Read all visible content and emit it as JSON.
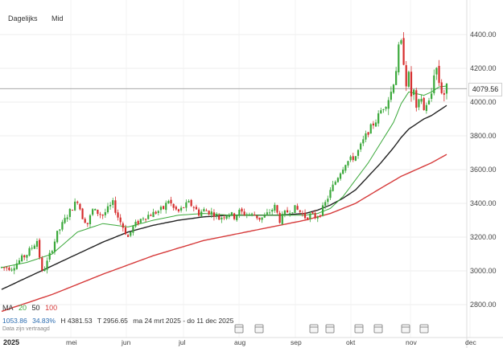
{
  "toolbar": {
    "period": "Dagelijks",
    "type": "Mid"
  },
  "price_badge": "4079.56",
  "legend": {
    "ma_label": "MA",
    "ma_values": [
      "20",
      "50",
      "100"
    ],
    "colors": {
      "ma20": "#3aa83a",
      "ma50": "#222222",
      "ma100": "#d63a3a",
      "up": "#3aa83a",
      "down": "#d62c2c"
    }
  },
  "stats": {
    "change": "1053.86",
    "pct": "34.83%",
    "high": "H 4381.53",
    "low": "T 2956.65",
    "range": "ma 24 mrt 2025 - do 11 dec 2025"
  },
  "note": "Data zijn vertraagd",
  "year_label": "2025",
  "chart_data": {
    "type": "candlestick",
    "y_ticks": [
      "4400.00",
      "4200.00",
      "4000.00",
      "3800.00",
      "3600.00",
      "3400.00",
      "3200.00",
      "3000.00",
      "2800.00"
    ],
    "ylim": [
      2680,
      4520
    ],
    "x_months": [
      "mei",
      "jun",
      "jul",
      "aug",
      "sep",
      "okt",
      "nov",
      "dec"
    ],
    "close_path": [
      [
        0,
        3020
      ],
      [
        4,
        3020
      ],
      [
        10,
        3100
      ],
      [
        14,
        3180
      ],
      [
        16,
        2990
      ],
      [
        18,
        3050
      ],
      [
        22,
        3220
      ],
      [
        26,
        3330
      ],
      [
        30,
        3420
      ],
      [
        32,
        3320
      ],
      [
        34,
        3280
      ],
      [
        36,
        3360
      ],
      [
        40,
        3330
      ],
      [
        44,
        3400
      ],
      [
        46,
        3320
      ],
      [
        48,
        3260
      ],
      [
        50,
        3200
      ],
      [
        52,
        3260
      ],
      [
        54,
        3290
      ],
      [
        56,
        3320
      ],
      [
        60,
        3340
      ],
      [
        64,
        3370
      ],
      [
        66,
        3420
      ],
      [
        68,
        3370
      ],
      [
        70,
        3350
      ],
      [
        72,
        3380
      ],
      [
        74,
        3400
      ],
      [
        76,
        3380
      ],
      [
        78,
        3340
      ],
      [
        80,
        3360
      ],
      [
        84,
        3340
      ],
      [
        86,
        3310
      ],
      [
        88,
        3330
      ],
      [
        90,
        3340
      ],
      [
        92,
        3320
      ],
      [
        94,
        3350
      ],
      [
        96,
        3340
      ],
      [
        100,
        3330
      ],
      [
        102,
        3310
      ],
      [
        104,
        3320
      ],
      [
        106,
        3350
      ],
      [
        108,
        3380
      ],
      [
        110,
        3300
      ],
      [
        112,
        3340
      ],
      [
        114,
        3360
      ],
      [
        116,
        3370
      ],
      [
        118,
        3350
      ],
      [
        120,
        3320
      ],
      [
        122,
        3330
      ],
      [
        124,
        3320
      ],
      [
        126,
        3340
      ],
      [
        128,
        3400
      ],
      [
        130,
        3470
      ],
      [
        132,
        3530
      ],
      [
        134,
        3590
      ],
      [
        136,
        3640
      ],
      [
        138,
        3660
      ],
      [
        140,
        3680
      ],
      [
        142,
        3740
      ],
      [
        144,
        3800
      ],
      [
        146,
        3850
      ],
      [
        148,
        3890
      ],
      [
        150,
        3950
      ],
      [
        152,
        3990
      ],
      [
        154,
        4060
      ],
      [
        156,
        4200
      ],
      [
        157,
        4310
      ],
      [
        158,
        4340
      ],
      [
        159,
        4250
      ],
      [
        160,
        4120
      ],
      [
        161,
        4150
      ],
      [
        162,
        4040
      ],
      [
        163,
        4060
      ],
      [
        164,
        3950
      ],
      [
        165,
        4000
      ],
      [
        166,
        4030
      ],
      [
        167,
        3950
      ],
      [
        168,
        3990
      ],
      [
        169,
        4000
      ],
      [
        170,
        4050
      ],
      [
        171,
        4180
      ],
      [
        172,
        4200
      ],
      [
        173,
        4120
      ],
      [
        174,
        4070
      ],
      [
        175,
        4050
      ],
      [
        176,
        4080
      ]
    ],
    "ma20_path": [
      [
        0,
        3020
      ],
      [
        10,
        3050
      ],
      [
        20,
        3100
      ],
      [
        30,
        3230
      ],
      [
        40,
        3280
      ],
      [
        50,
        3260
      ],
      [
        60,
        3300
      ],
      [
        70,
        3330
      ],
      [
        80,
        3340
      ],
      [
        90,
        3330
      ],
      [
        100,
        3330
      ],
      [
        110,
        3330
      ],
      [
        120,
        3330
      ],
      [
        125,
        3340
      ],
      [
        130,
        3370
      ],
      [
        135,
        3440
      ],
      [
        140,
        3540
      ],
      [
        145,
        3640
      ],
      [
        150,
        3760
      ],
      [
        155,
        3880
      ],
      [
        158,
        3990
      ],
      [
        161,
        4060
      ],
      [
        164,
        4050
      ],
      [
        167,
        4040
      ],
      [
        170,
        4060
      ],
      [
        173,
        4090
      ],
      [
        176,
        4095
      ]
    ],
    "ma50_path": [
      [
        0,
        2890
      ],
      [
        10,
        2960
      ],
      [
        20,
        3030
      ],
      [
        30,
        3100
      ],
      [
        40,
        3170
      ],
      [
        50,
        3230
      ],
      [
        60,
        3270
      ],
      [
        70,
        3300
      ],
      [
        80,
        3320
      ],
      [
        90,
        3330
      ],
      [
        100,
        3330
      ],
      [
        110,
        3330
      ],
      [
        120,
        3340
      ],
      [
        125,
        3360
      ],
      [
        130,
        3390
      ],
      [
        135,
        3430
      ],
      [
        140,
        3480
      ],
      [
        145,
        3560
      ],
      [
        150,
        3640
      ],
      [
        155,
        3730
      ],
      [
        158,
        3790
      ],
      [
        161,
        3840
      ],
      [
        164,
        3870
      ],
      [
        167,
        3900
      ],
      [
        170,
        3920
      ],
      [
        173,
        3950
      ],
      [
        176,
        3980
      ]
    ],
    "ma100_path": [
      [
        0,
        2760
      ],
      [
        20,
        2860
      ],
      [
        40,
        2980
      ],
      [
        60,
        3090
      ],
      [
        80,
        3180
      ],
      [
        100,
        3240
      ],
      [
        110,
        3270
      ],
      [
        120,
        3300
      ],
      [
        130,
        3340
      ],
      [
        140,
        3400
      ],
      [
        150,
        3490
      ],
      [
        158,
        3560
      ],
      [
        164,
        3600
      ],
      [
        170,
        3640
      ],
      [
        176,
        3690
      ]
    ]
  }
}
